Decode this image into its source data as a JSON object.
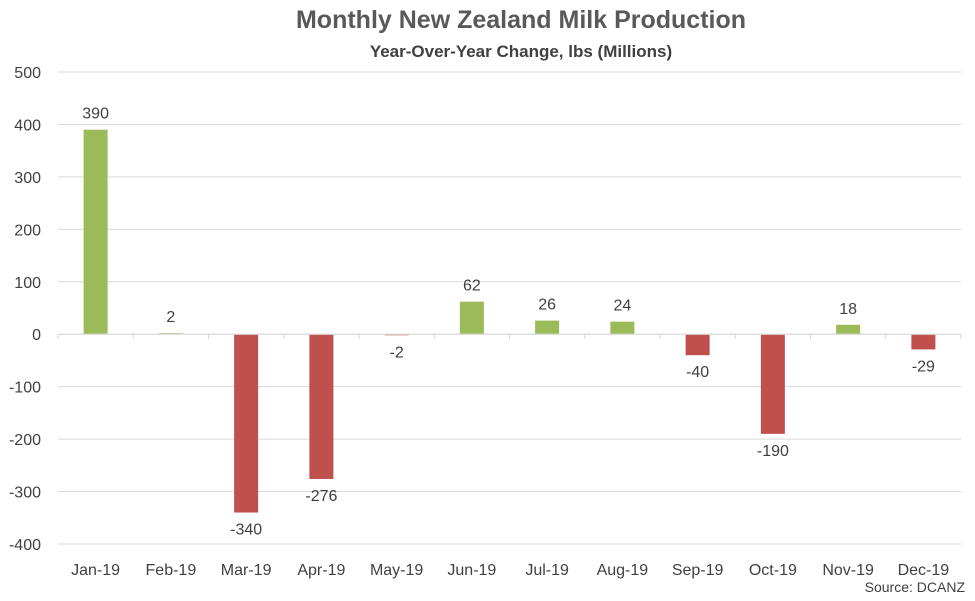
{
  "chart_data": {
    "type": "bar",
    "title": "Monthly New Zealand Milk Production",
    "subtitle": "Year-Over-Year Change, lbs (Millions)",
    "source": "Source: DCANZ",
    "categories": [
      "Jan-19",
      "Feb-19",
      "Mar-19",
      "Apr-19",
      "May-19",
      "Jun-19",
      "Jul-19",
      "Aug-19",
      "Sep-19",
      "Oct-19",
      "Nov-19",
      "Dec-19"
    ],
    "values": [
      390,
      2,
      -340,
      -276,
      -2,
      62,
      26,
      24,
      -40,
      -190,
      18,
      -29
    ],
    "ylim": [
      -400,
      500
    ],
    "yticks": [
      -400,
      -300,
      -200,
      -100,
      0,
      100,
      200,
      300,
      400,
      500
    ],
    "grid": true,
    "colors": {
      "positive": "#9bbb59",
      "negative": "#c0504d",
      "grid": "#d9d9d9",
      "text": "#404040"
    }
  }
}
